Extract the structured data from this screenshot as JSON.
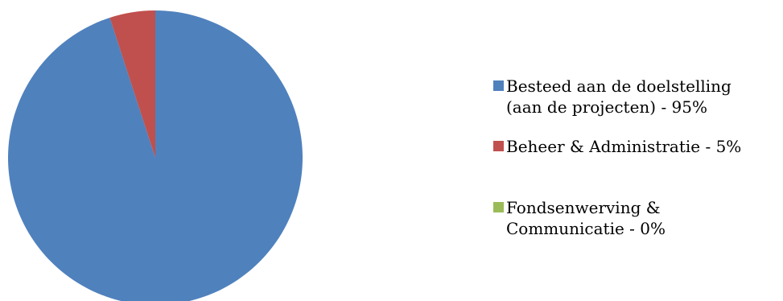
{
  "chart_data": {
    "type": "pie",
    "title": "",
    "slices": [
      {
        "label": "Besteed aan de doelstelling\n(aan de projecten) - 95%",
        "value": 95,
        "color": "#4F81BD"
      },
      {
        "label": "Beheer & Administratie - 5%",
        "value": 5,
        "color": "#C0504D"
      },
      {
        "label": "Fondsenwerving &\nCommunicatie - 0%",
        "value": 0,
        "color": "#9BBB59"
      }
    ],
    "legend_position": "right"
  }
}
